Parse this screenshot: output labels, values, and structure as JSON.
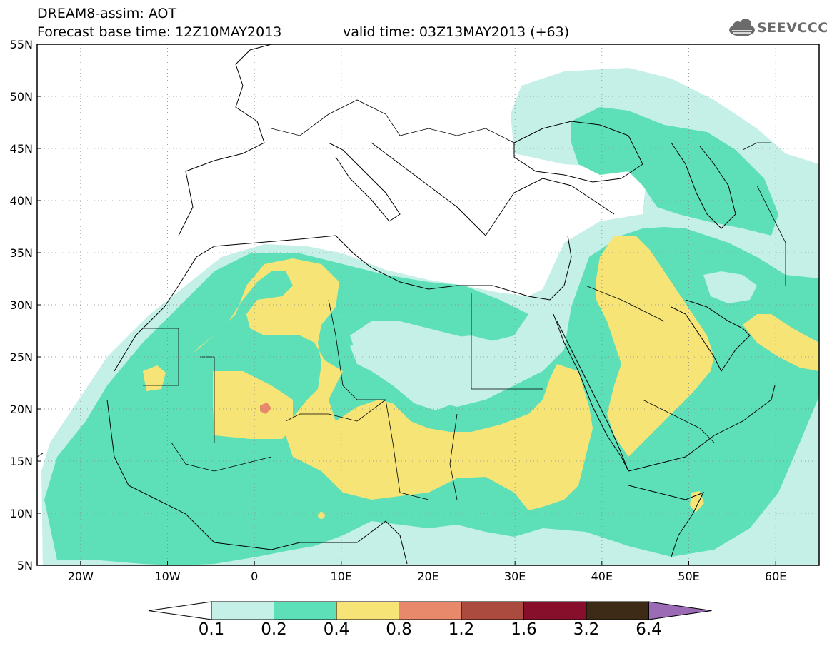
{
  "header": {
    "title_line1": "DREAM8-assim: AOT",
    "title_line2": "Forecast base time: 12Z10MAY2013",
    "valid_time": "valid time: 03Z13MAY2013 (+63)",
    "logo_text": "SEEVCCC"
  },
  "map": {
    "variable": "AOT",
    "lat_range": [
      5,
      55
    ],
    "lon_range": [
      -25,
      65
    ],
    "lat_labels": [
      "55N",
      "50N",
      "45N",
      "40N",
      "35N",
      "30N",
      "25N",
      "20N",
      "15N",
      "10N",
      "5N"
    ],
    "lon_labels": [
      "20W",
      "10W",
      "0",
      "10E",
      "20E",
      "30E",
      "40E",
      "50E",
      "60E"
    ],
    "gridlines": "dotted",
    "colors": {
      "class_0_1": "#c4f0e8",
      "class_0_2": "#5ddfb8",
      "class_0_4": "#f6e477",
      "class_0_8": "#e8896b",
      "class_1_2": "#ab4a3e",
      "class_1_6": "#870f2c",
      "class_3_2": "#3e2b17",
      "class_6_4": "#9b6bb5"
    }
  },
  "colorbar": {
    "labels": [
      "0.1",
      "0.2",
      "0.4",
      "0.8",
      "1.2",
      "1.6",
      "3.2",
      "6.4"
    ],
    "colors": [
      "#c4f0e8",
      "#5ddfb8",
      "#f6e477",
      "#e8896b",
      "#ab4a3e",
      "#870f2c",
      "#3e2b17"
    ],
    "under_color": "#ffffff",
    "over_color": "#9b6bb5"
  }
}
